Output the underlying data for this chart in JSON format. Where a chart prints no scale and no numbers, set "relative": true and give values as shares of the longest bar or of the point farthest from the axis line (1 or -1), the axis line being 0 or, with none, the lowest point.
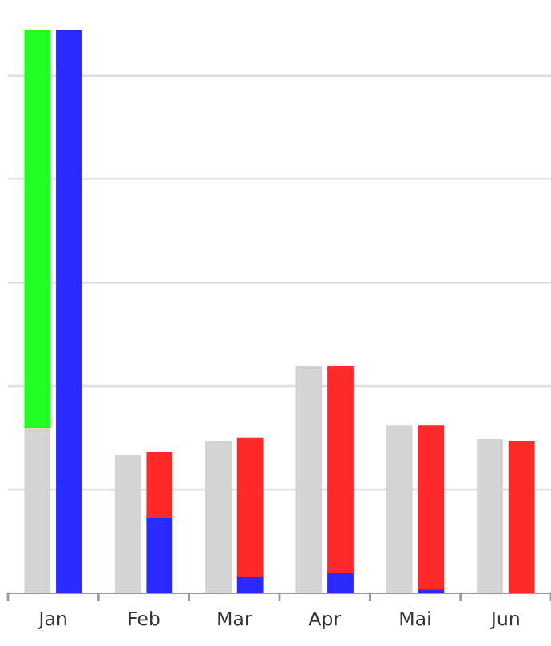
{
  "chart_data": [
    {
      "type": "bar",
      "relative": true,
      "stacked": true,
      "grid": "y",
      "categories": [
        "Jan",
        "Feb",
        "Mar",
        "Apr",
        "Mai",
        "Jun"
      ],
      "series": [
        {
          "color": "#d4d4d4",
          "values": [
            0.295,
            0.244,
            0.269,
            0.402,
            0.297,
            0.272
          ]
        },
        {
          "color": "#22ff22",
          "values": [
            0.705,
            null,
            null,
            null,
            null,
            null
          ]
        }
      ]
    },
    {
      "type": "bar",
      "relative": true,
      "stacked": true,
      "tick_labels": false,
      "categories": [
        null,
        null,
        null,
        null,
        null,
        null
      ],
      "series": [
        {
          "color": "#2a2aff",
          "values": [
            1.0,
            0.136,
            0.031,
            0.037,
            0.008,
            null
          ]
        },
        {
          "color": "#ff2a2a",
          "values": [
            null,
            0.113,
            0.244,
            0.365,
            0.289,
            0.269
          ]
        }
      ]
    }
  ]
}
